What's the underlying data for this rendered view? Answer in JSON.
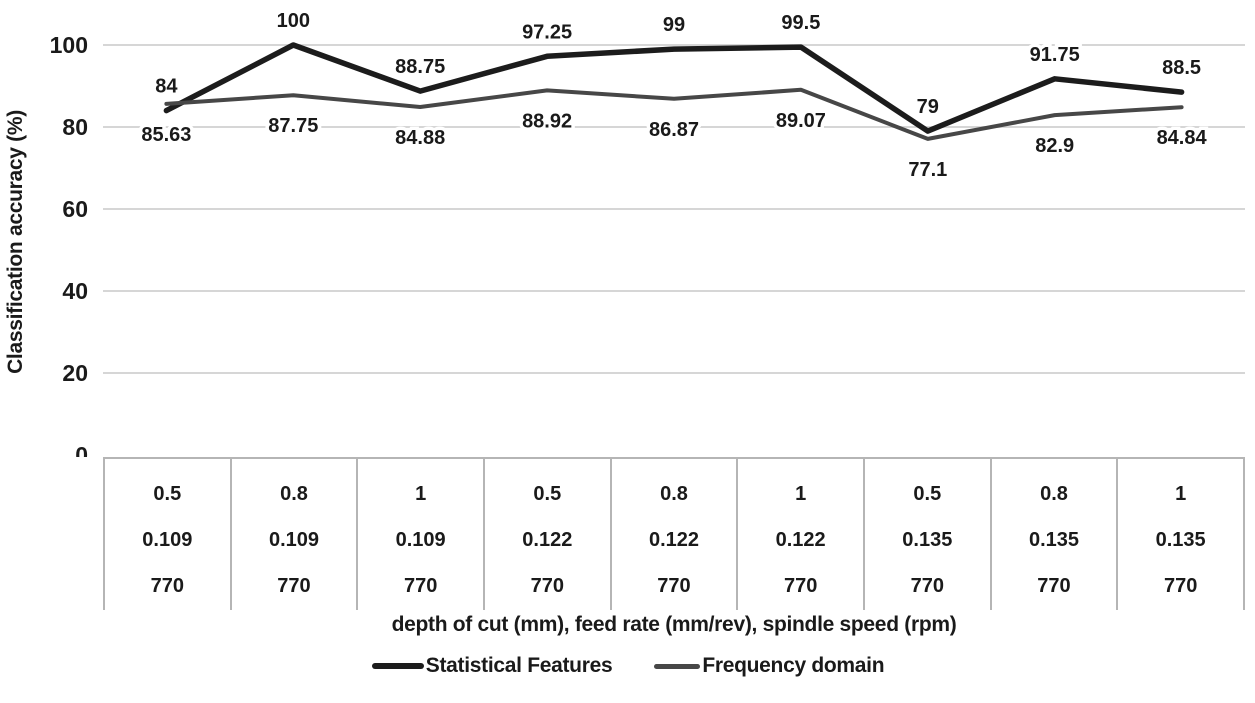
{
  "chart_data": {
    "type": "line",
    "title": "",
    "ylabel": "Classification accuracy (%)",
    "xlabel": "depth of cut (mm), feed rate (mm/rev), spindle speed (rpm)",
    "ylim": [
      0,
      100
    ],
    "yticks": [
      0,
      20,
      40,
      60,
      80,
      100
    ],
    "grid": true,
    "grid_color": "#d6d6d6",
    "text_color": "#1a1a1a",
    "table_border_color": "#b5b5b5",
    "legend_position": "bottom",
    "category_row_meaning": [
      "depth of cut (mm)",
      "feed rate (mm/rev)",
      "spindle speed (rpm)"
    ],
    "categories": [
      [
        "0.5",
        "0.109",
        "770"
      ],
      [
        "0.8",
        "0.109",
        "770"
      ],
      [
        "1",
        "0.109",
        "770"
      ],
      [
        "0.5",
        "0.122",
        "770"
      ],
      [
        "0.8",
        "0.122",
        "770"
      ],
      [
        "1",
        "0.122",
        "770"
      ],
      [
        "0.5",
        "0.135",
        "770"
      ],
      [
        "0.8",
        "0.135",
        "770"
      ],
      [
        "1",
        "0.135",
        "770"
      ]
    ],
    "series": [
      {
        "name": "Statistical Features",
        "color": "#1c1c1c",
        "values": [
          84,
          100,
          88.75,
          97.25,
          99,
          99.5,
          79,
          91.75,
          88.5
        ],
        "labels": [
          "84",
          "100",
          "88.75",
          "97.25",
          "99",
          "99.5",
          "79",
          "91.75",
          "88.5"
        ],
        "label_position": "above"
      },
      {
        "name": "Frequency domain",
        "color": "#474747",
        "values": [
          85.63,
          87.75,
          84.88,
          88.92,
          86.87,
          89.07,
          77.1,
          82.9,
          84.84
        ],
        "labels": [
          "85.63",
          "87.75",
          "84.88",
          "88.92",
          "86.87",
          "89.07",
          "77.1",
          "82.9",
          "84.84"
        ],
        "label_position": "below"
      }
    ]
  }
}
